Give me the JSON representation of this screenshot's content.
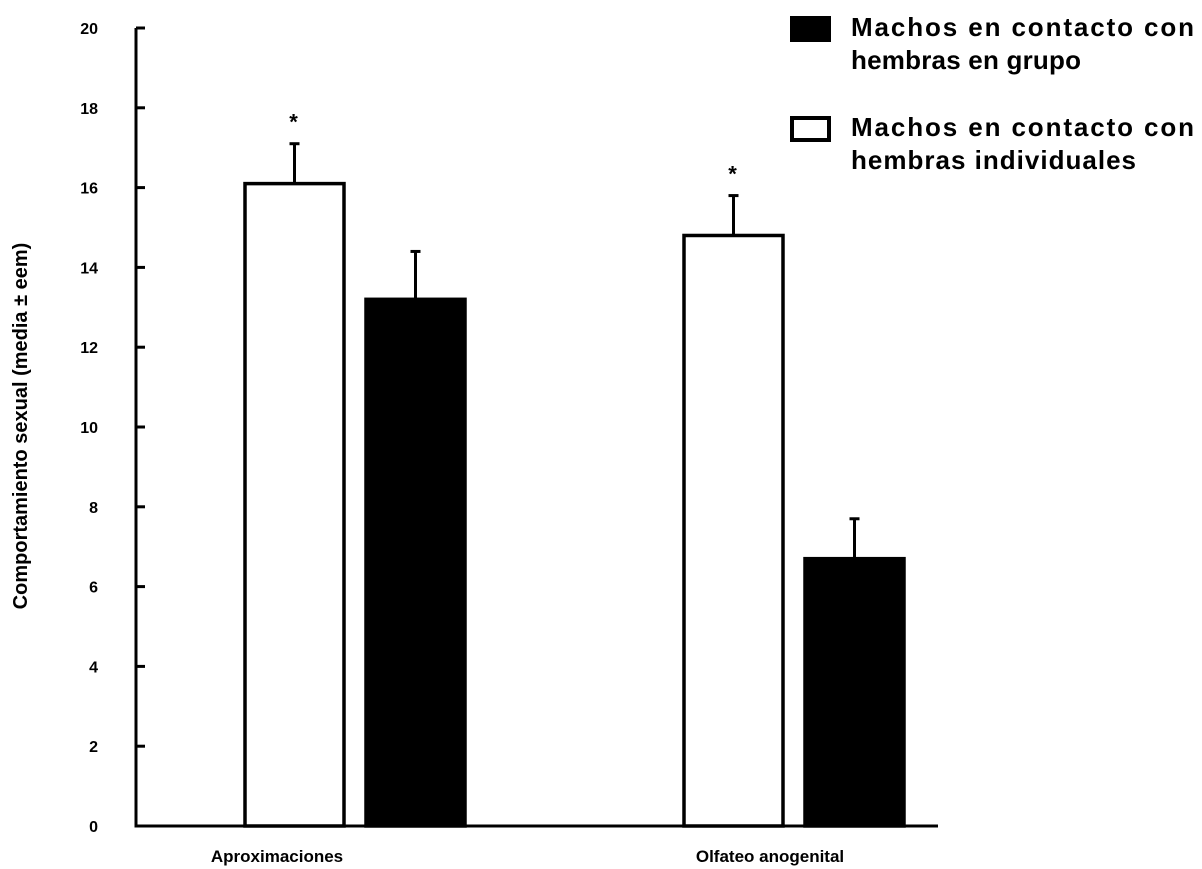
{
  "chart_data": {
    "type": "bar",
    "categories": [
      "Aproximaciones",
      "Olfateo anogenital"
    ],
    "ylabel": "Comportamiento sexual (media ± eem)",
    "xlabel": "",
    "ylim": [
      0,
      20
    ],
    "yticks": [
      0,
      2,
      4,
      6,
      8,
      10,
      12,
      14,
      16,
      18,
      20
    ],
    "grid": false,
    "legend_position": "top-right",
    "series": [
      {
        "name": "Machos en contacto con hembras individuales",
        "legend_lines": [
          "Machos en contacto con",
          "hembras individuales"
        ],
        "fill": "#ffffff",
        "values": [
          16.1,
          14.8
        ],
        "errors": [
          1.0,
          1.0
        ],
        "annotations": [
          "*",
          "*"
        ]
      },
      {
        "name": "Machos en contacto con hembras en grupo",
        "legend_lines": [
          "Machos en contacto con",
          "hembras en grupo"
        ],
        "fill": "#000000",
        "values": [
          13.2,
          6.7
        ],
        "errors": [
          1.2,
          1.0
        ],
        "annotations": [
          "",
          ""
        ]
      }
    ]
  },
  "colors": {
    "axis": "#000000",
    "background": "#ffffff"
  }
}
